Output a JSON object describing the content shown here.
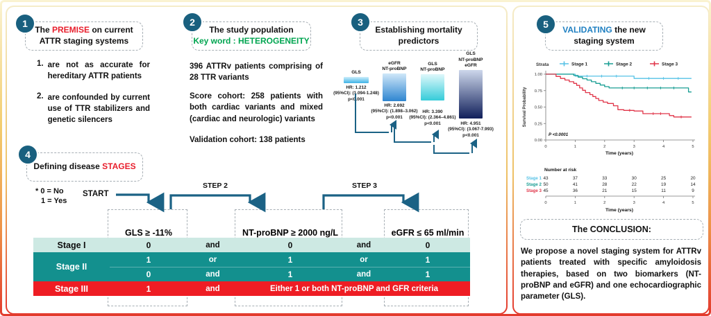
{
  "badges": {
    "s1": "1",
    "s2": "2",
    "s3": "3",
    "s4": "4",
    "s5": "5"
  },
  "colors": {
    "badge": "#19607f",
    "accent_red": "#e81e2c",
    "accent_green": "#00a550",
    "accent_blue": "#1e7fc1",
    "arrow": "#1b6285",
    "table_teal": "#13908e",
    "table_light": "#cde9e3",
    "table_red": "#ee1d24",
    "stage1": "#56c2e6",
    "stage2": "#189e93",
    "stage3": "#e03448"
  },
  "section1": {
    "title_pre": "The ",
    "title_accent": "PREMISE",
    "title_post": " on current",
    "title_line2": "ATTR staging systems",
    "items": [
      {
        "num": "1.",
        "text": "are not as accurate for hereditary ATTR patients"
      },
      {
        "num": "2.",
        "text": "are confounded by current use of TTR stabilizers and genetic silencers"
      }
    ]
  },
  "section2": {
    "title_line1": "The study population",
    "title_line2": "Key word : HETEROGENEITY",
    "paragraphs": [
      "396 ATTRv patients comprising of 28 TTR variants",
      "Score cohort: 258 patients with both cardiac variants and mixed (cardiac and neurologic) variants",
      "Validation cohort: 138 patients"
    ]
  },
  "section3": {
    "title_line1": "Establishing mortality",
    "title_line2": "predictors"
  },
  "section4": {
    "title_pre": "Defining disease ",
    "title_accent": "STAGES",
    "note_line1": "* 0 = No",
    "note_line2": "1 = Yes",
    "start_label": "START",
    "step2_label": "STEP 2",
    "step3_label": "STEP 3",
    "table": {
      "headers": [
        "GLS ≥ -11%",
        "NT-proBNP ≥ 2000 ng/L",
        "eGFR ≤ 65 ml/min"
      ],
      "rows": [
        {
          "stage": "Stage I",
          "style": "light",
          "cells": [
            "0",
            "and",
            "0",
            "and",
            "0"
          ]
        },
        {
          "stage": "Stage II",
          "style": "teal",
          "stage_rowspan": 2,
          "cells": [
            "1",
            "or",
            "1",
            "or",
            "1"
          ]
        },
        {
          "stage": "",
          "style": "teal",
          "cells": [
            "0",
            "and",
            "1",
            "and",
            "1"
          ]
        },
        {
          "stage": "Stage III",
          "style": "red",
          "cells": [
            "1",
            "and"
          ],
          "span_text": "Either 1 or both NT-proBNP and GFR criteria"
        }
      ]
    }
  },
  "section5": {
    "title_accent": "VALIDATING",
    "title_post": " the new",
    "title_line2": "staging system"
  },
  "conclusion": {
    "title": "The CONCLUSION:",
    "body": "We propose a novel staging system for ATTRv patients treated with specific amyloidosis therapies, based on two biomarkers (NT-proBNP and eGFR) and one echocardiographic parameter (GLS)."
  },
  "chart_data": [
    {
      "type": "bar",
      "title": "Establishing mortality predictors",
      "xlabel": "",
      "ylabel": "Hazard Ratio",
      "bars": [
        {
          "category_lines": [
            "GLS"
          ],
          "value": 1.212,
          "hr_label": "HR:  1.212",
          "ci_label": "(95%CI): (1.094-1.248)",
          "p_label": "p<0.001",
          "color_top": "#cdeefb",
          "color_bottom": "#3fb3e6"
        },
        {
          "category_lines": [
            "eGFR",
            "NT-proBNP"
          ],
          "value": 2.692,
          "hr_label": "HR:  2.692",
          "ci_label": "(95%CI): (1.898–3.062)",
          "p_label": "p<0.001",
          "color_top": "#cfe7f9",
          "color_bottom": "#2e85d0"
        },
        {
          "category_lines": [
            "GLS",
            "NT-proBNP"
          ],
          "value": 3.39,
          "hr_label": "HR:  3.390",
          "ci_label": "(95%CI): (2.364–4.861)",
          "p_label": "p<0.001",
          "color_top": "#dff8fb",
          "color_bottom": "#35ccd9"
        },
        {
          "category_lines": [
            "GLS",
            "NT-proBNP",
            "eGFR"
          ],
          "value": 4.951,
          "hr_label": "HR:  4.951",
          "ci_label": "(95%CI): (3.067-7.993)",
          "p_label": "p<0.001",
          "color_top": "#cdd7eb",
          "color_bottom": "#101f5a"
        }
      ]
    },
    {
      "type": "line",
      "subtype": "kaplan-meier",
      "xlabel": "Time (years)",
      "ylabel": "Survival Probability",
      "xlim": [
        0,
        5
      ],
      "ylim": [
        0,
        1
      ],
      "xticks": [
        0,
        1,
        2,
        3,
        4,
        5
      ],
      "ytick_labels": [
        "0.00",
        "0.25",
        "0.50",
        "0.75",
        "1.00"
      ],
      "legend_title": "Strata",
      "pvalue": "P <0.0001",
      "series": [
        {
          "name": "Stage 1",
          "color": "#56c2e6",
          "points": [
            [
              0,
              1
            ],
            [
              1.0,
              1
            ],
            [
              1.0,
              0.97
            ],
            [
              3.0,
              0.97
            ],
            [
              3.0,
              0.935
            ],
            [
              4.95,
              0.935
            ]
          ],
          "censors": [
            [
              1.4,
              0.97
            ],
            [
              1.9,
              0.97
            ],
            [
              2.4,
              0.97
            ],
            [
              3.5,
              0.935
            ],
            [
              4.0,
              0.935
            ],
            [
              4.5,
              0.935
            ]
          ]
        },
        {
          "name": "Stage 2",
          "color": "#189e93",
          "points": [
            [
              0,
              1
            ],
            [
              0.95,
              1
            ],
            [
              0.95,
              0.98
            ],
            [
              1.1,
              0.98
            ],
            [
              1.1,
              0.955
            ],
            [
              1.25,
              0.955
            ],
            [
              1.25,
              0.93
            ],
            [
              1.4,
              0.93
            ],
            [
              1.4,
              0.91
            ],
            [
              1.55,
              0.91
            ],
            [
              1.55,
              0.885
            ],
            [
              1.7,
              0.885
            ],
            [
              1.7,
              0.86
            ],
            [
              1.85,
              0.86
            ],
            [
              1.85,
              0.835
            ],
            [
              2.0,
              0.835
            ],
            [
              2.0,
              0.81
            ],
            [
              2.15,
              0.81
            ],
            [
              2.15,
              0.79
            ],
            [
              2.3,
              0.79
            ],
            [
              4.85,
              0.79
            ],
            [
              4.85,
              0.73
            ],
            [
              4.95,
              0.73
            ]
          ],
          "censors": [
            [
              2.6,
              0.79
            ],
            [
              3.0,
              0.79
            ],
            [
              3.45,
              0.79
            ],
            [
              3.9,
              0.79
            ],
            [
              4.35,
              0.79
            ]
          ]
        },
        {
          "name": "Stage 3",
          "color": "#e03448",
          "points": [
            [
              0,
              1
            ],
            [
              0.35,
              1
            ],
            [
              0.35,
              0.965
            ],
            [
              0.5,
              0.965
            ],
            [
              0.5,
              0.935
            ],
            [
              0.65,
              0.935
            ],
            [
              0.65,
              0.91
            ],
            [
              0.8,
              0.91
            ],
            [
              0.8,
              0.885
            ],
            [
              0.95,
              0.885
            ],
            [
              0.95,
              0.86
            ],
            [
              1.05,
              0.86
            ],
            [
              1.05,
              0.83
            ],
            [
              1.15,
              0.83
            ],
            [
              1.15,
              0.79
            ],
            [
              1.25,
              0.79
            ],
            [
              1.25,
              0.755
            ],
            [
              1.35,
              0.755
            ],
            [
              1.35,
              0.72
            ],
            [
              1.5,
              0.72
            ],
            [
              1.5,
              0.69
            ],
            [
              1.6,
              0.69
            ],
            [
              1.6,
              0.66
            ],
            [
              1.7,
              0.66
            ],
            [
              1.7,
              0.63
            ],
            [
              1.8,
              0.63
            ],
            [
              1.8,
              0.6
            ],
            [
              1.95,
              0.6
            ],
            [
              1.95,
              0.575
            ],
            [
              2.1,
              0.575
            ],
            [
              2.1,
              0.555
            ],
            [
              2.3,
              0.555
            ],
            [
              2.3,
              0.52
            ],
            [
              2.45,
              0.52
            ],
            [
              2.45,
              0.46
            ],
            [
              2.65,
              0.46
            ],
            [
              2.65,
              0.45
            ],
            [
              3.0,
              0.45
            ],
            [
              3.0,
              0.44
            ],
            [
              3.3,
              0.44
            ],
            [
              3.3,
              0.4
            ],
            [
              4.2,
              0.4
            ],
            [
              4.2,
              0.37
            ],
            [
              4.35,
              0.37
            ],
            [
              4.35,
              0.35
            ],
            [
              4.95,
              0.35
            ]
          ],
          "censors": [
            [
              2.85,
              0.45
            ],
            [
              3.65,
              0.4
            ],
            [
              3.9,
              0.4
            ],
            [
              4.6,
              0.35
            ]
          ]
        }
      ],
      "risk_table": {
        "title": "Number at risk",
        "xlabel": "Time (years)",
        "xticks": [
          0,
          1,
          2,
          3,
          4,
          5
        ],
        "rows": [
          {
            "name": "Stage 1",
            "color": "#56c2e6",
            "values": [
              43,
              37,
              33,
              30,
              25,
              20
            ]
          },
          {
            "name": "Stage 2",
            "color": "#189e93",
            "values": [
              50,
              41,
              28,
              22,
              19,
              14
            ]
          },
          {
            "name": "Stage 3",
            "color": "#e03448",
            "values": [
              45,
              36,
              21,
              15,
              11,
              9
            ]
          }
        ]
      }
    }
  ]
}
